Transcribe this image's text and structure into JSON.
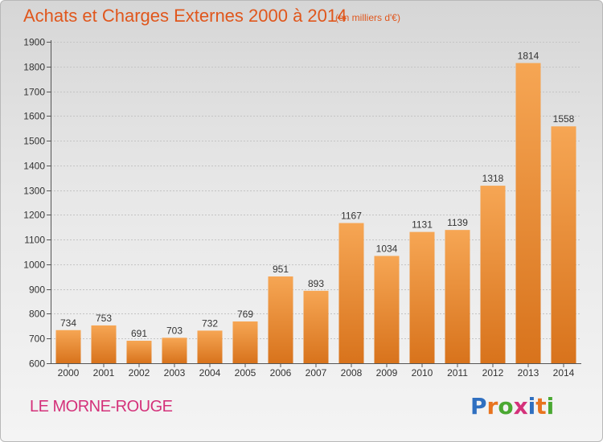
{
  "header": {
    "title": "Achats et Charges Externes 2000 à 2014",
    "unit": "(en milliers d'€)"
  },
  "footer": {
    "place": "LE MORNE-ROUGE",
    "logo_letters": [
      "P",
      "r",
      "o",
      "x",
      "i",
      "t",
      "i"
    ],
    "logo_colors": [
      "#2f6fc0",
      "#e8741f",
      "#4aa832",
      "#d4317a",
      "#2f6fc0",
      "#e8741f",
      "#4aa832"
    ]
  },
  "chart_data": {
    "type": "bar",
    "title": "Achats et Charges Externes 2000 à 2014",
    "subtitle": "(en milliers d'€)",
    "categories": [
      "2000",
      "2001",
      "2002",
      "2003",
      "2004",
      "2005",
      "2006",
      "2007",
      "2008",
      "2009",
      "2010",
      "2011",
      "2012",
      "2013",
      "2014"
    ],
    "values": [
      734,
      753,
      691,
      703,
      732,
      769,
      951,
      893,
      1167,
      1034,
      1131,
      1139,
      1318,
      1814,
      1558
    ],
    "ylim": [
      600,
      1900
    ],
    "yticks": [
      600,
      700,
      800,
      900,
      1000,
      1100,
      1200,
      1300,
      1400,
      1500,
      1600,
      1700,
      1800,
      1900
    ],
    "grid": true,
    "bar_color": "#f29a3d",
    "xlabel": "",
    "ylabel": ""
  }
}
